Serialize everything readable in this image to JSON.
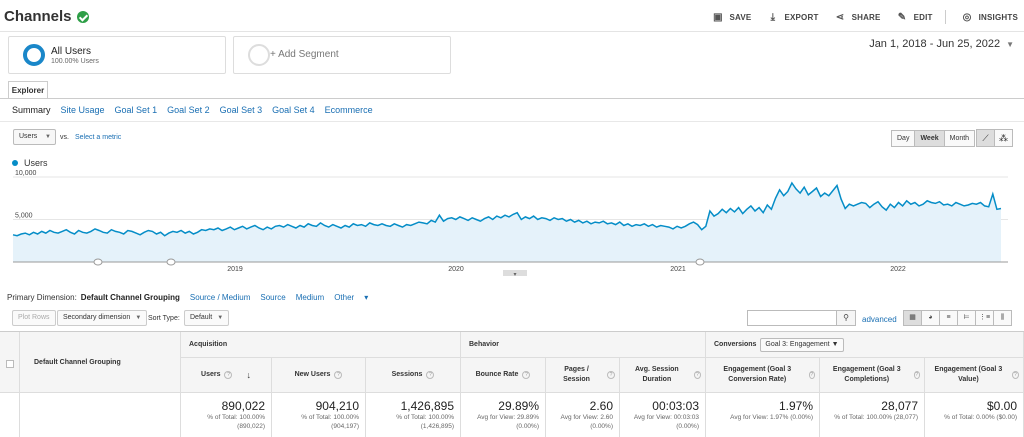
{
  "header": {
    "title": "Channels",
    "actions": [
      {
        "label": "SAVE",
        "icon": "save-icon",
        "glyph": "▣"
      },
      {
        "label": "EXPORT",
        "icon": "export-icon",
        "glyph": "⤓"
      },
      {
        "label": "SHARE",
        "icon": "share-icon",
        "glyph": "⋖"
      },
      {
        "label": "EDIT",
        "icon": "pencil-icon",
        "glyph": "✎"
      },
      {
        "label": "INSIGHTS",
        "icon": "insights-icon",
        "glyph": "◎"
      }
    ]
  },
  "segments": {
    "active_name": "All Users",
    "active_sub": "100.00% Users",
    "add_label": "+ Add Segment"
  },
  "date_range": "Jan 1, 2018 - Jun 25, 2022",
  "explorer_tab": "Explorer",
  "subtabs": [
    "Summary",
    "Site Usage",
    "Goal Set 1",
    "Goal Set 2",
    "Goal Set 3",
    "Goal Set 4",
    "Ecommerce"
  ],
  "chart_controls": {
    "metric": "Users",
    "vs": "vs.",
    "select_metric": "Select a metric",
    "periods": [
      "Day",
      "Week",
      "Month"
    ],
    "active_period": "Week"
  },
  "chart_data": {
    "type": "line",
    "series_name": "Users",
    "color": "#058dc7",
    "fill": "#e5f2fa",
    "ylim": [
      0,
      10000
    ],
    "yticks": [
      "10,000",
      "5,000"
    ],
    "xticks": [
      "2019",
      "2020",
      "2021",
      "2022"
    ],
    "values": [
      3200,
      3100,
      3300,
      3400,
      3200,
      3500,
      3300,
      3600,
      3400,
      3700,
      3500,
      3400,
      3600,
      3800,
      3500,
      3300,
      3700,
      3500,
      3400,
      3600,
      3900,
      3700,
      3500,
      3400,
      3800,
      3600,
      3500,
      3300,
      3700,
      3600,
      3400,
      3200,
      3500,
      3700,
      3600,
      3300,
      3500,
      3100,
      3400,
      3600,
      3500,
      3700,
      3400,
      3600,
      3300,
      3500,
      3800,
      3700,
      3900,
      3800,
      4000,
      3700,
      3900,
      4100,
      3800,
      4000,
      4200,
      3900,
      4100,
      4300,
      4000,
      3800,
      4100,
      3900,
      4200,
      4300,
      4100,
      4400,
      4200,
      4000,
      4300,
      4100,
      4500,
      4300,
      4200,
      4600,
      4300,
      4100,
      4400,
      4200,
      4000,
      4300,
      4100,
      4500,
      4300,
      4400,
      4200,
      4600,
      4400,
      4300,
      4500,
      4300,
      4200,
      4500,
      4300,
      4100,
      4400,
      4300,
      4500,
      4700,
      4600,
      4500,
      4900,
      4700,
      5500,
      4800,
      5100,
      5200,
      5000,
      5300,
      5100,
      4900,
      5200,
      5000,
      4800,
      5100,
      5300,
      5000,
      5400,
      5200,
      5500,
      5300,
      5600,
      5800,
      5000,
      5300,
      5100,
      5400,
      5000,
      5200,
      5100,
      4900,
      5200,
      5000,
      5100,
      4800,
      5000,
      4700,
      4900,
      4600,
      4800,
      4500,
      4700,
      4600,
      4800,
      4500,
      4600,
      4400,
      4700,
      4300,
      4500,
      4200,
      4400,
      4300,
      4500,
      4200,
      4400,
      4100,
      4300,
      4200,
      4100,
      3900,
      4200,
      4000,
      4200,
      4500,
      4700,
      4400,
      3800,
      4200,
      6000,
      5400,
      5700,
      6200,
      5800,
      6300,
      5900,
      6400,
      5700,
      6200,
      6600,
      6000,
      6400,
      5800,
      6700,
      6200,
      7500,
      8500,
      7800,
      8300,
      9300,
      8600,
      8100,
      8800,
      7900,
      8300,
      8700,
      7700,
      8100,
      7800,
      8400,
      9000,
      7400,
      6300,
      6800,
      6600,
      6800,
      7000,
      6900,
      6400,
      6800,
      7100,
      6500,
      6100,
      6800,
      6400,
      7000,
      6600,
      7200,
      6800,
      7000,
      6600,
      6800,
      7200,
      7000,
      6900,
      7100,
      6700,
      6800,
      6600,
      7000,
      6800,
      6600,
      6700,
      6900,
      6800,
      7000,
      6600,
      6500,
      8000,
      6200,
      6300
    ],
    "annotations_x": [
      98,
      171,
      700
    ]
  },
  "dimensions": {
    "label": "Primary Dimension:",
    "active": "Default Channel Grouping",
    "links": [
      "Source / Medium",
      "Source",
      "Medium",
      "Other"
    ]
  },
  "toolbar": {
    "plot_rows": "Plot Rows",
    "secondary_dimension": "Secondary dimension",
    "sort_type_label": "Sort Type:",
    "sort_type": "Default",
    "advanced": "advanced"
  },
  "table": {
    "dimension_header": "Default Channel Grouping",
    "groups": {
      "acquisition": "Acquisition",
      "behavior": "Behavior",
      "conversions": "Conversions",
      "goal_select": "Goal 3: Engagement"
    },
    "columns": [
      {
        "label": "Users",
        "value": "890,022",
        "sub1": "% of Total: 100.00%",
        "sub2": "(890,022)"
      },
      {
        "label": "New Users",
        "value": "904,210",
        "sub1": "% of Total: 100.00%",
        "sub2": "(904,197)"
      },
      {
        "label": "Sessions",
        "value": "1,426,895",
        "sub1": "% of Total: 100.00%",
        "sub2": "(1,426,895)"
      },
      {
        "label": "Bounce Rate",
        "value": "29.89%",
        "sub1": "Avg for View: 29.89%",
        "sub2": "(0.00%)"
      },
      {
        "label": "Pages / Session",
        "value": "2.60",
        "sub1": "Avg for View: 2.60",
        "sub2": "(0.00%)"
      },
      {
        "label": "Avg. Session Duration",
        "value": "00:03:03",
        "sub1": "Avg for View: 00:03:03",
        "sub2": "(0.00%)"
      },
      {
        "label": "Engagement (Goal 3 Conversion Rate)",
        "value": "1.97%",
        "sub1": "Avg for View: 1.97% (0.00%)",
        "sub2": ""
      },
      {
        "label": "Engagement (Goal 3 Completions)",
        "value": "28,077",
        "sub1": "% of Total: 100.00% (28,077)",
        "sub2": ""
      },
      {
        "label": "Engagement (Goal 3 Value)",
        "value": "$0.00",
        "sub1": "% of Total: 0.00% ($0.00)",
        "sub2": ""
      }
    ]
  }
}
